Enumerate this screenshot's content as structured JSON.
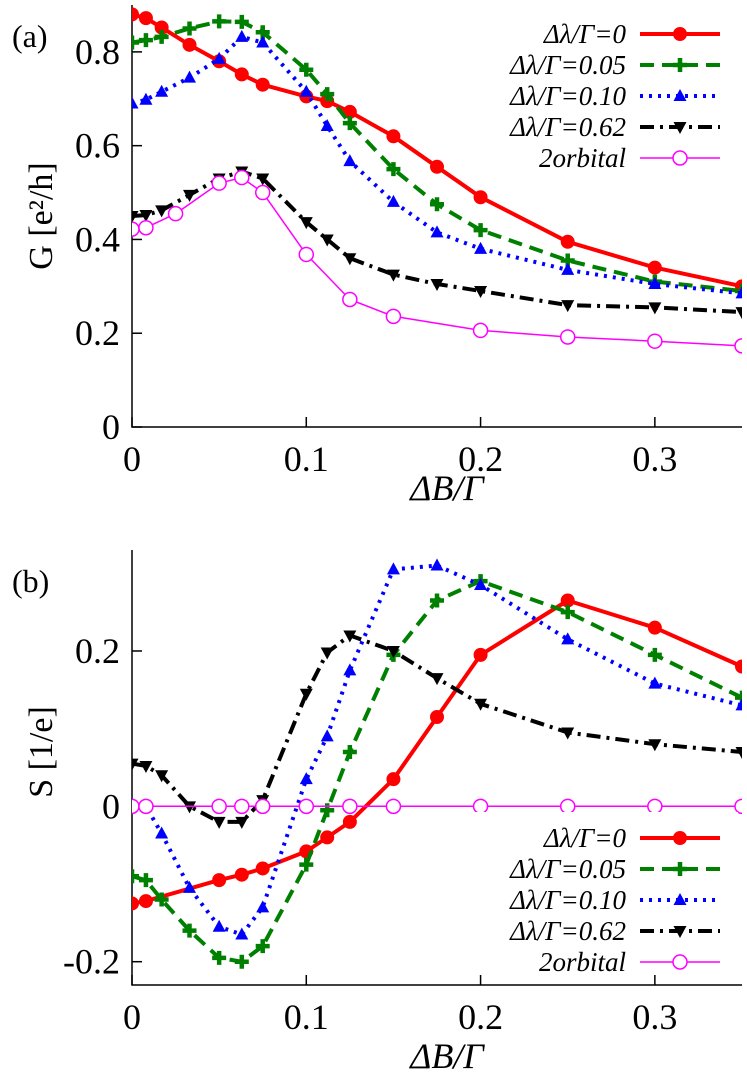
{
  "colors": {
    "d0": "#ff0000",
    "d005": "#008000",
    "d010": "#0000ff",
    "d062": "#000000",
    "orb": "#ff00ff"
  },
  "chart_data": [
    {
      "type": "line",
      "panel_label": "(a)",
      "ylabel": "G [e²/h]",
      "xlabel": "ΔB/Γ",
      "xlim": [
        0,
        0.35
      ],
      "ylim": [
        0,
        0.9
      ],
      "xticks": [
        "0",
        "0.1",
        "0.2",
        "0.3"
      ],
      "yticks": [
        "0",
        "0.2",
        "0.4",
        "0.6",
        "0.8"
      ],
      "legend_position": "top-right",
      "series": [
        {
          "name": "Δλ/Γ=0",
          "color_key": "d0",
          "dash": "solid",
          "marker": "circle",
          "x": [
            0,
            0.008,
            0.017,
            0.033,
            0.05,
            0.063,
            0.075,
            0.1,
            0.112,
            0.125,
            0.15,
            0.175,
            0.2,
            0.25,
            0.3,
            0.35
          ],
          "y": [
            0.88,
            0.872,
            0.852,
            0.815,
            0.78,
            0.752,
            0.73,
            0.705,
            0.695,
            0.672,
            0.62,
            0.555,
            0.49,
            0.395,
            0.34,
            0.3
          ]
        },
        {
          "name": "Δλ/Γ=0.05",
          "color_key": "d005",
          "dash": "dashed",
          "marker": "plus",
          "x": [
            0,
            0.008,
            0.017,
            0.033,
            0.05,
            0.063,
            0.075,
            0.1,
            0.112,
            0.125,
            0.15,
            0.175,
            0.2,
            0.25,
            0.3,
            0.35
          ],
          "y": [
            0.82,
            0.825,
            0.832,
            0.85,
            0.865,
            0.864,
            0.842,
            0.762,
            0.71,
            0.648,
            0.55,
            0.475,
            0.42,
            0.355,
            0.31,
            0.29
          ]
        },
        {
          "name": "Δλ/Γ=0.10",
          "color_key": "d010",
          "dash": "dotted",
          "marker": "triangle-up",
          "x": [
            0,
            0.008,
            0.017,
            0.033,
            0.05,
            0.063,
            0.075,
            0.1,
            0.112,
            0.125,
            0.15,
            0.175,
            0.2,
            0.25,
            0.3,
            0.35
          ],
          "y": [
            0.69,
            0.698,
            0.715,
            0.745,
            0.785,
            0.832,
            0.82,
            0.715,
            0.642,
            0.567,
            0.48,
            0.415,
            0.38,
            0.335,
            0.305,
            0.285
          ]
        },
        {
          "name": "Δλ/Γ=0.62",
          "color_key": "d062",
          "dash": "dashdot",
          "marker": "triangle-down",
          "x": [
            0,
            0.008,
            0.017,
            0.033,
            0.05,
            0.063,
            0.075,
            0.1,
            0.112,
            0.125,
            0.15,
            0.175,
            0.2,
            0.25,
            0.3,
            0.35
          ],
          "y": [
            0.45,
            0.452,
            0.462,
            0.495,
            0.53,
            0.545,
            0.53,
            0.437,
            0.4,
            0.36,
            0.325,
            0.305,
            0.29,
            0.26,
            0.255,
            0.245
          ]
        },
        {
          "name": "2orbital",
          "color_key": "orb",
          "dash": "solid-thin",
          "marker": "open-circle",
          "x": [
            0,
            0.008,
            0.025,
            0.05,
            0.063,
            0.075,
            0.1,
            0.125,
            0.15,
            0.2,
            0.25,
            0.3,
            0.35
          ],
          "y": [
            0.422,
            0.425,
            0.455,
            0.52,
            0.532,
            0.5,
            0.368,
            0.272,
            0.236,
            0.206,
            0.192,
            0.183,
            0.173
          ]
        }
      ]
    },
    {
      "type": "line",
      "panel_label": "(b)",
      "ylabel": "S [1/e]",
      "xlabel": "ΔB/Γ",
      "xlim": [
        0,
        0.35
      ],
      "ylim": [
        -0.23,
        0.33
      ],
      "xticks": [
        "0",
        "0.1",
        "0.2",
        "0.3"
      ],
      "yticks": [
        "-0.2",
        "0",
        "0.2"
      ],
      "legend_position": "bottom-right",
      "series": [
        {
          "name": "Δλ/Γ=0",
          "color_key": "d0",
          "dash": "solid",
          "marker": "circle",
          "x": [
            0,
            0.008,
            0.05,
            0.063,
            0.075,
            0.1,
            0.112,
            0.125,
            0.15,
            0.175,
            0.2,
            0.25,
            0.3,
            0.35
          ],
          "y": [
            -0.125,
            -0.122,
            -0.095,
            -0.088,
            -0.08,
            -0.058,
            -0.04,
            -0.02,
            0.035,
            0.115,
            0.195,
            0.265,
            0.23,
            0.18
          ]
        },
        {
          "name": "Δλ/Γ=0.05",
          "color_key": "d005",
          "dash": "dashed",
          "marker": "plus",
          "x": [
            0,
            0.008,
            0.017,
            0.033,
            0.05,
            0.063,
            0.075,
            0.1,
            0.112,
            0.125,
            0.15,
            0.175,
            0.2,
            0.25,
            0.3,
            0.35
          ],
          "y": [
            -0.09,
            -0.095,
            -0.12,
            -0.16,
            -0.195,
            -0.2,
            -0.18,
            -0.075,
            -0.005,
            0.07,
            0.195,
            0.265,
            0.29,
            0.25,
            0.195,
            0.14
          ]
        },
        {
          "name": "Δλ/Γ=0.10",
          "color_key": "d010",
          "dash": "dotted",
          "marker": "triangle-up",
          "x": [
            0,
            0.008,
            0.017,
            0.033,
            0.05,
            0.063,
            0.075,
            0.1,
            0.112,
            0.125,
            0.15,
            0.175,
            0.2,
            0.25,
            0.3,
            0.35
          ],
          "y": [
            0.003,
            0.0,
            -0.035,
            -0.105,
            -0.155,
            -0.165,
            -0.13,
            0.035,
            0.09,
            0.175,
            0.305,
            0.31,
            0.285,
            0.215,
            0.158,
            0.13
          ]
        },
        {
          "name": "Δλ/Γ=0.62",
          "color_key": "d062",
          "dash": "dashdot",
          "marker": "triangle-down",
          "x": [
            0,
            0.008,
            0.017,
            0.033,
            0.05,
            0.063,
            0.075,
            0.1,
            0.112,
            0.125,
            0.15,
            0.175,
            0.2,
            0.25,
            0.3,
            0.35
          ],
          "y": [
            0.055,
            0.052,
            0.04,
            0.0,
            -0.02,
            -0.02,
            0.008,
            0.145,
            0.198,
            0.22,
            0.2,
            0.165,
            0.132,
            0.095,
            0.08,
            0.07
          ]
        },
        {
          "name": "2orbital",
          "color_key": "orb",
          "dash": "solid-thin",
          "marker": "open-circle",
          "x": [
            0,
            0.008,
            0.05,
            0.063,
            0.075,
            0.1,
            0.125,
            0.15,
            0.2,
            0.25,
            0.3,
            0.35
          ],
          "y": [
            0,
            0,
            0,
            0,
            0,
            0,
            0,
            0,
            0,
            0,
            0,
            0
          ]
        }
      ]
    }
  ]
}
